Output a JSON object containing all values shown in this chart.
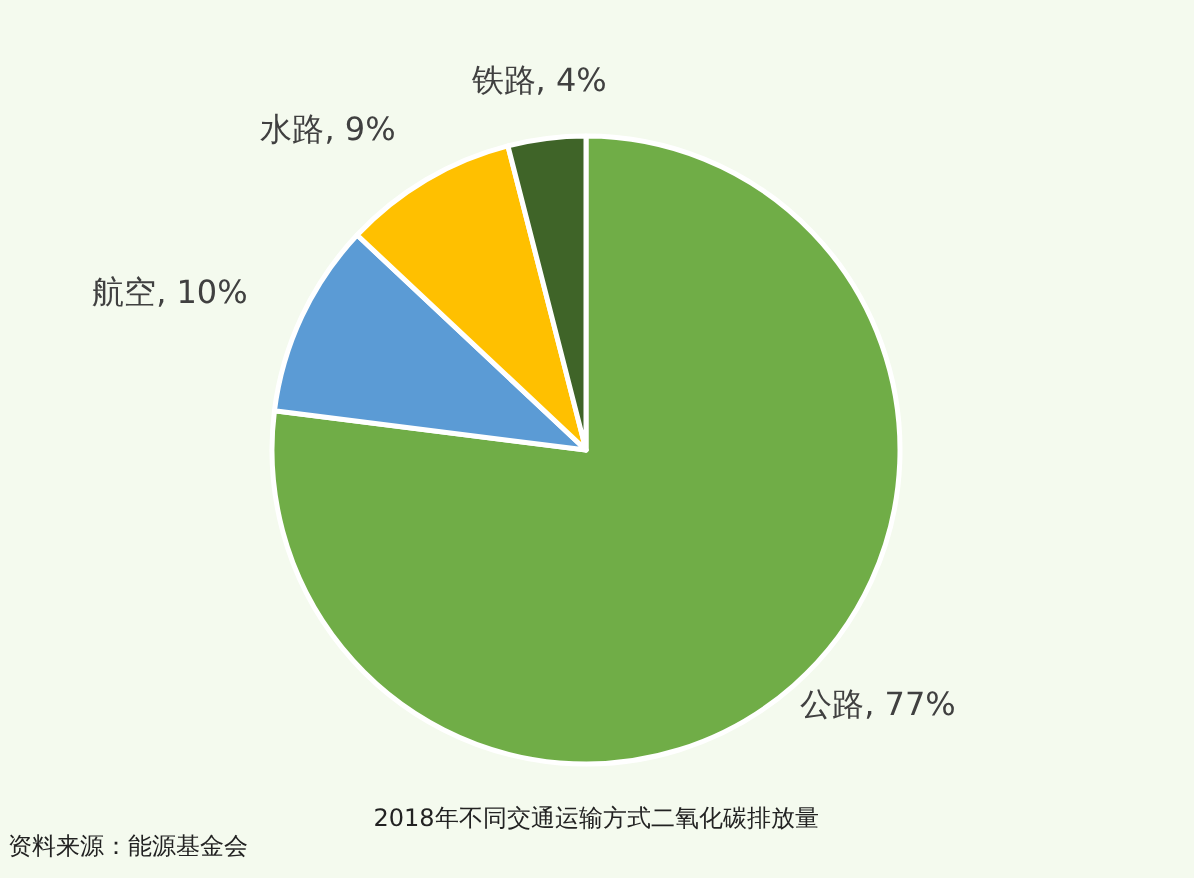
{
  "chart_data": {
    "type": "pie",
    "title": "2018年不同交通运输方式二氧化碳排放量",
    "categories": [
      "公路",
      "航空",
      "水路",
      "铁路"
    ],
    "values": [
      77,
      10,
      9,
      4
    ],
    "colors": [
      "#70ad47",
      "#5b9bd5",
      "#ffc000",
      "#3f6428"
    ],
    "value_labels": [
      ", 77%",
      ", 10%",
      ", 9%",
      ", 4%"
    ],
    "annotations": [
      "资料来源：能源基金会"
    ]
  }
}
